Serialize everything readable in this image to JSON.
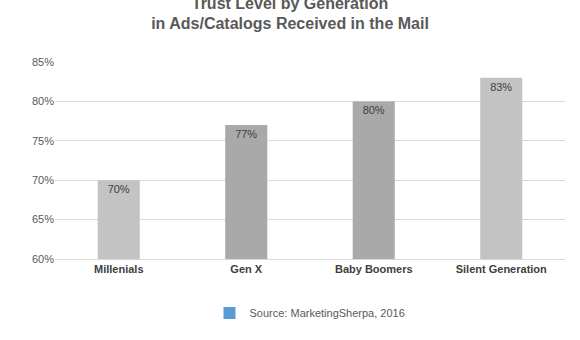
{
  "chart_data": {
    "type": "bar",
    "title": "Trust Level by Generation\nin Ads/Catalogs Received in the Mail",
    "categories": [
      "Millenials",
      "Gen X",
      "Baby Boomers",
      "Silent Generation"
    ],
    "series": [
      {
        "name": "Source: MarketingSherpa, 2016",
        "color": "#5b9bd5",
        "values": [
          70,
          77,
          80,
          83
        ],
        "value_labels": [
          "70%",
          "77%",
          "80%",
          "83%"
        ],
        "colors": [
          "#c3c3c3",
          "#a9a9a9",
          "#a9a9a9",
          "#c3c3c3"
        ]
      }
    ],
    "ylim": [
      60,
      85
    ],
    "yticks": [
      {
        "value": 60,
        "label": "60%"
      },
      {
        "value": 65,
        "label": "65%"
      },
      {
        "value": 70,
        "label": "70%"
      },
      {
        "value": 75,
        "label": "75%"
      },
      {
        "value": 80,
        "label": "80%"
      },
      {
        "value": 85,
        "label": "85%"
      }
    ],
    "grid": true,
    "data_labels": true,
    "legend": "bottom"
  }
}
